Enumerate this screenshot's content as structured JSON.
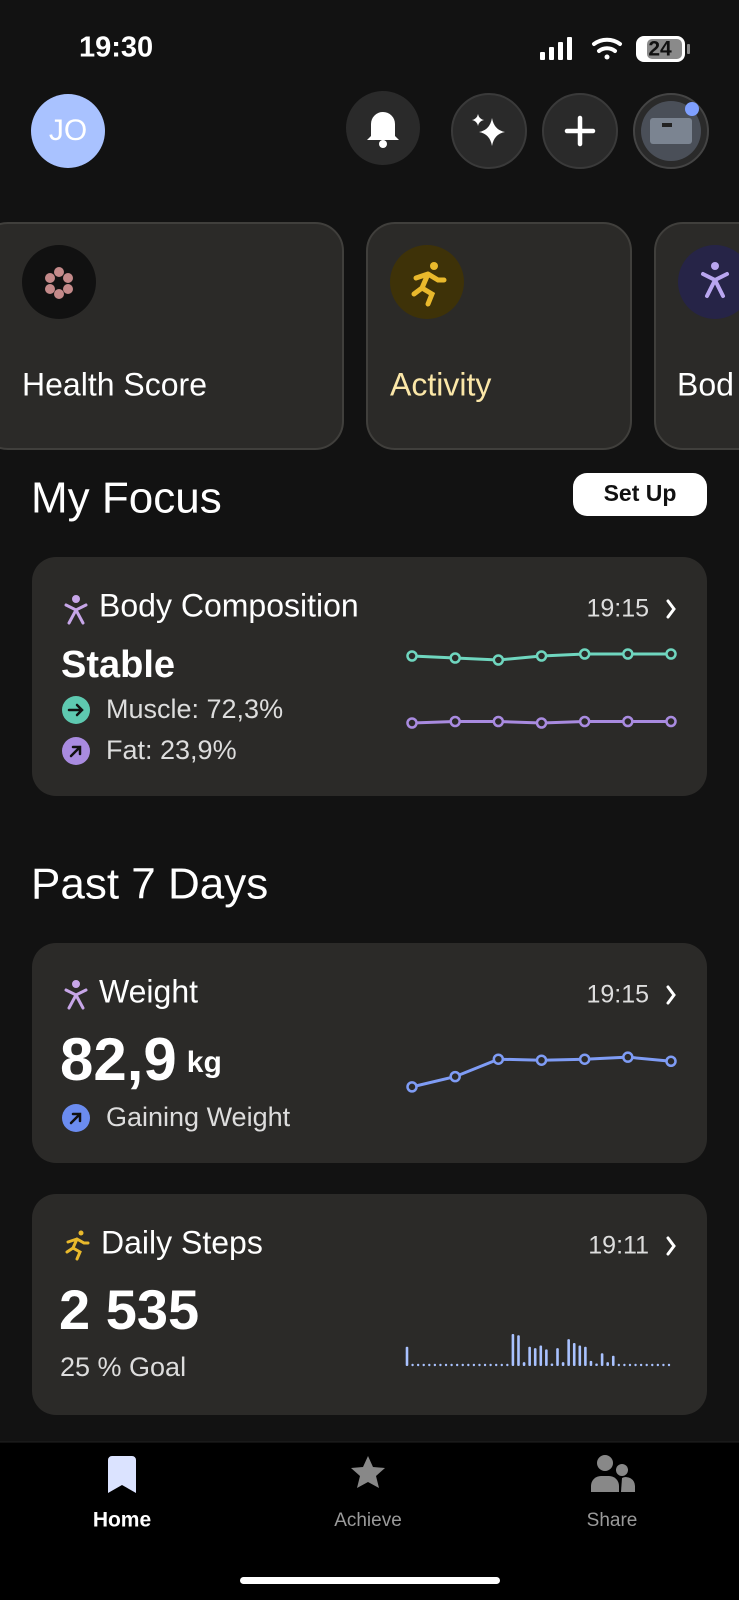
{
  "status_bar": {
    "time": "19:30",
    "battery": "24"
  },
  "header": {
    "avatar": "JO"
  },
  "tiles": [
    "Health Score",
    "Activity",
    "Bod"
  ],
  "focus": {
    "title": "My Focus",
    "button": "Set Up",
    "body_composition": {
      "title": "Body Composition",
      "time": "19:15",
      "status": "Stable",
      "muscle": "Muscle: 72,3%",
      "fat": "Fat: 23,9%",
      "muscle_trend": {
        "values": [
          72.2,
          72.1,
          72.0,
          72.2,
          72.3,
          72.3,
          72.3
        ],
        "ylim": [
          71.5,
          73.0
        ]
      },
      "fat_trend": {
        "values": [
          23.8,
          23.9,
          23.9,
          23.8,
          23.9,
          23.9,
          23.9
        ],
        "ylim": [
          23.0,
          25.0
        ]
      }
    }
  },
  "past": {
    "title": "Past 7 Days",
    "weight": {
      "title": "Weight",
      "time": "19:15",
      "value": "82,9",
      "unit": "kg",
      "trend": "Gaining Weight",
      "chart": {
        "values": [
          81.65,
          82.15,
          83.0,
          82.95,
          83.0,
          83.1,
          82.9
        ],
        "ylim": [
          81.4,
          83.4
        ]
      }
    },
    "steps": {
      "title": "Daily Steps",
      "time": "19:11",
      "value": "2 535",
      "goal": "25 % Goal",
      "chart": {
        "values": [
          300,
          0,
          0,
          0,
          0,
          0,
          0,
          0,
          0,
          0,
          0,
          0,
          0,
          0,
          0,
          0,
          0,
          0,
          0,
          500,
          480,
          60,
          300,
          280,
          320,
          260,
          40,
          280,
          60,
          420,
          360,
          320,
          300,
          80,
          40,
          200,
          60,
          160,
          0,
          0,
          0,
          0,
          0,
          0,
          0,
          0,
          0,
          0
        ],
        "ylim": [
          0,
          500
        ]
      }
    }
  },
  "nav": [
    "Home",
    "Achieve",
    "Share"
  ]
}
